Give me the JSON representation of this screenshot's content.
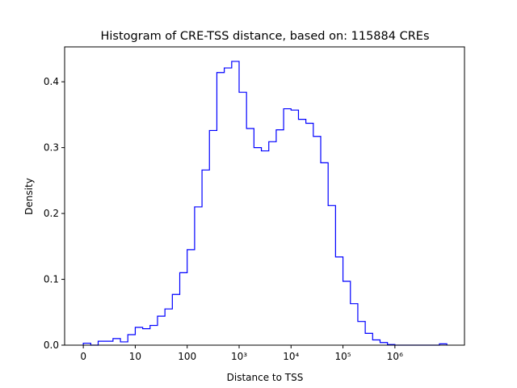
{
  "chart_data": {
    "type": "bar",
    "histtype": "step",
    "title": "Histogram of CRE-TSS distance, based on: 115884 CREs",
    "xlabel": "Distance to TSS",
    "ylabel": "Density",
    "x_scale": "log10(distance+1)",
    "bin_width": 0.142857,
    "bin_start": 0,
    "values": [
      0.003,
      0.0,
      0.006,
      0.006,
      0.01,
      0.005,
      0.016,
      0.027,
      0.025,
      0.03,
      0.044,
      0.055,
      0.077,
      0.11,
      0.145,
      0.21,
      0.266,
      0.326,
      0.414,
      0.421,
      0.431,
      0.384,
      0.329,
      0.3,
      0.295,
      0.309,
      0.327,
      0.359,
      0.357,
      0.343,
      0.337,
      0.317,
      0.277,
      0.212,
      0.134,
      0.097,
      0.063,
      0.036,
      0.018,
      0.008,
      0.004,
      0.001,
      0,
      0,
      0,
      0,
      0,
      0,
      0.002
    ],
    "xlim": [
      -0.36,
      7.34
    ],
    "ylim": [
      0,
      0.453
    ],
    "xticks": [
      {
        "v": 0,
        "label": "0"
      },
      {
        "v": 1,
        "label": "10"
      },
      {
        "v": 2,
        "label": "100"
      },
      {
        "v": 3,
        "label": "10³"
      },
      {
        "v": 4,
        "label": "10⁴"
      },
      {
        "v": 5,
        "label": "10⁵"
      },
      {
        "v": 6,
        "label": "10⁶"
      }
    ],
    "yticks": [
      {
        "v": 0,
        "label": "0.0"
      },
      {
        "v": 0.1,
        "label": "0.1"
      },
      {
        "v": 0.2,
        "label": "0.2"
      },
      {
        "v": 0.3,
        "label": "0.3"
      },
      {
        "v": 0.4,
        "label": "0.4"
      }
    ],
    "color": "#0000ff",
    "grid": false
  }
}
